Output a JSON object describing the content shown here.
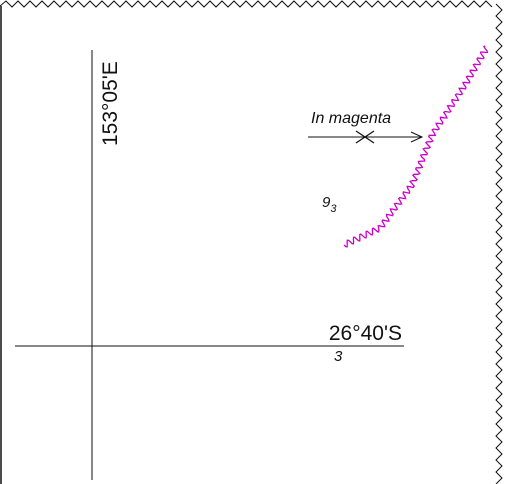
{
  "meridian": {
    "label": "153°05'E"
  },
  "parallel": {
    "label": "26°40'S",
    "sublabel": "3"
  },
  "annotation": {
    "text": "In magenta"
  },
  "depth_sounding": {
    "main": "9",
    "sub": "3"
  },
  "colors": {
    "ink": "#111111",
    "magenta": "#cc00cc"
  },
  "features": [
    {
      "kind": "meridian-line",
      "longitude": "153°05'E"
    },
    {
      "kind": "parallel-line",
      "latitude": "26°40'S"
    },
    {
      "kind": "magenta-wavy-line",
      "color": "magenta"
    },
    {
      "kind": "arrow-with-cross",
      "note": "In magenta"
    },
    {
      "kind": "chart-border-zigzag"
    }
  ]
}
